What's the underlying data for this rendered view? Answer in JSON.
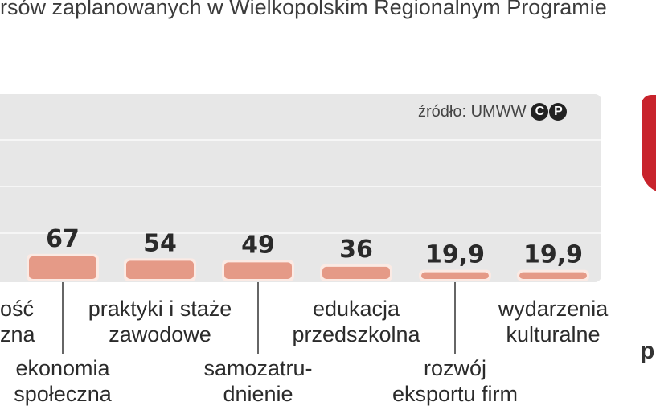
{
  "header": {
    "title_fragment": "rsów zaplanowanych w Wielkopolskim Regionalnym Programie"
  },
  "source": {
    "text": "źródło: UMWW",
    "mark_letters": [
      "C",
      "P"
    ]
  },
  "edge_letter": "p",
  "colors": {
    "bar": "#e59a87",
    "bar_outline": "#fbeae4",
    "panel": "#e7e7e7",
    "grid": "#f6f6f6",
    "accent_red": "#c8232c",
    "leader_line": "#666666"
  },
  "chart_data": {
    "type": "bar",
    "title": "",
    "xlabel": "",
    "ylabel": "",
    "ylim": [
      0,
      160
    ],
    "grid": true,
    "categories": [
      "…ość …zna",
      "ekonomia społeczna",
      "praktyki i staże zawodowe",
      "samozatrudnienie",
      "edukacja przedszkolna",
      "rozwój eksportu firm",
      "wydarzenia kulturalne"
    ],
    "values": [
      null,
      67,
      54,
      49,
      36,
      19.9,
      19.9
    ],
    "value_labels": [
      "",
      "67",
      "54",
      "49",
      "36",
      "19,9",
      "19,9"
    ],
    "category_labels": [
      [
        "ość",
        "zna"
      ],
      [
        "ekonomia",
        "społeczna"
      ],
      [
        "praktyki i staże",
        "zawodowe"
      ],
      [
        "samozatru-",
        "dnienie"
      ],
      [
        "edukacja",
        "przedszkolna"
      ],
      [
        "rozwój",
        "eksportu firm"
      ],
      [
        "wydarzenia",
        "kulturalne"
      ]
    ],
    "label_row": [
      "upper",
      "lower",
      "upper",
      "lower",
      "upper",
      "lower",
      "upper"
    ]
  }
}
